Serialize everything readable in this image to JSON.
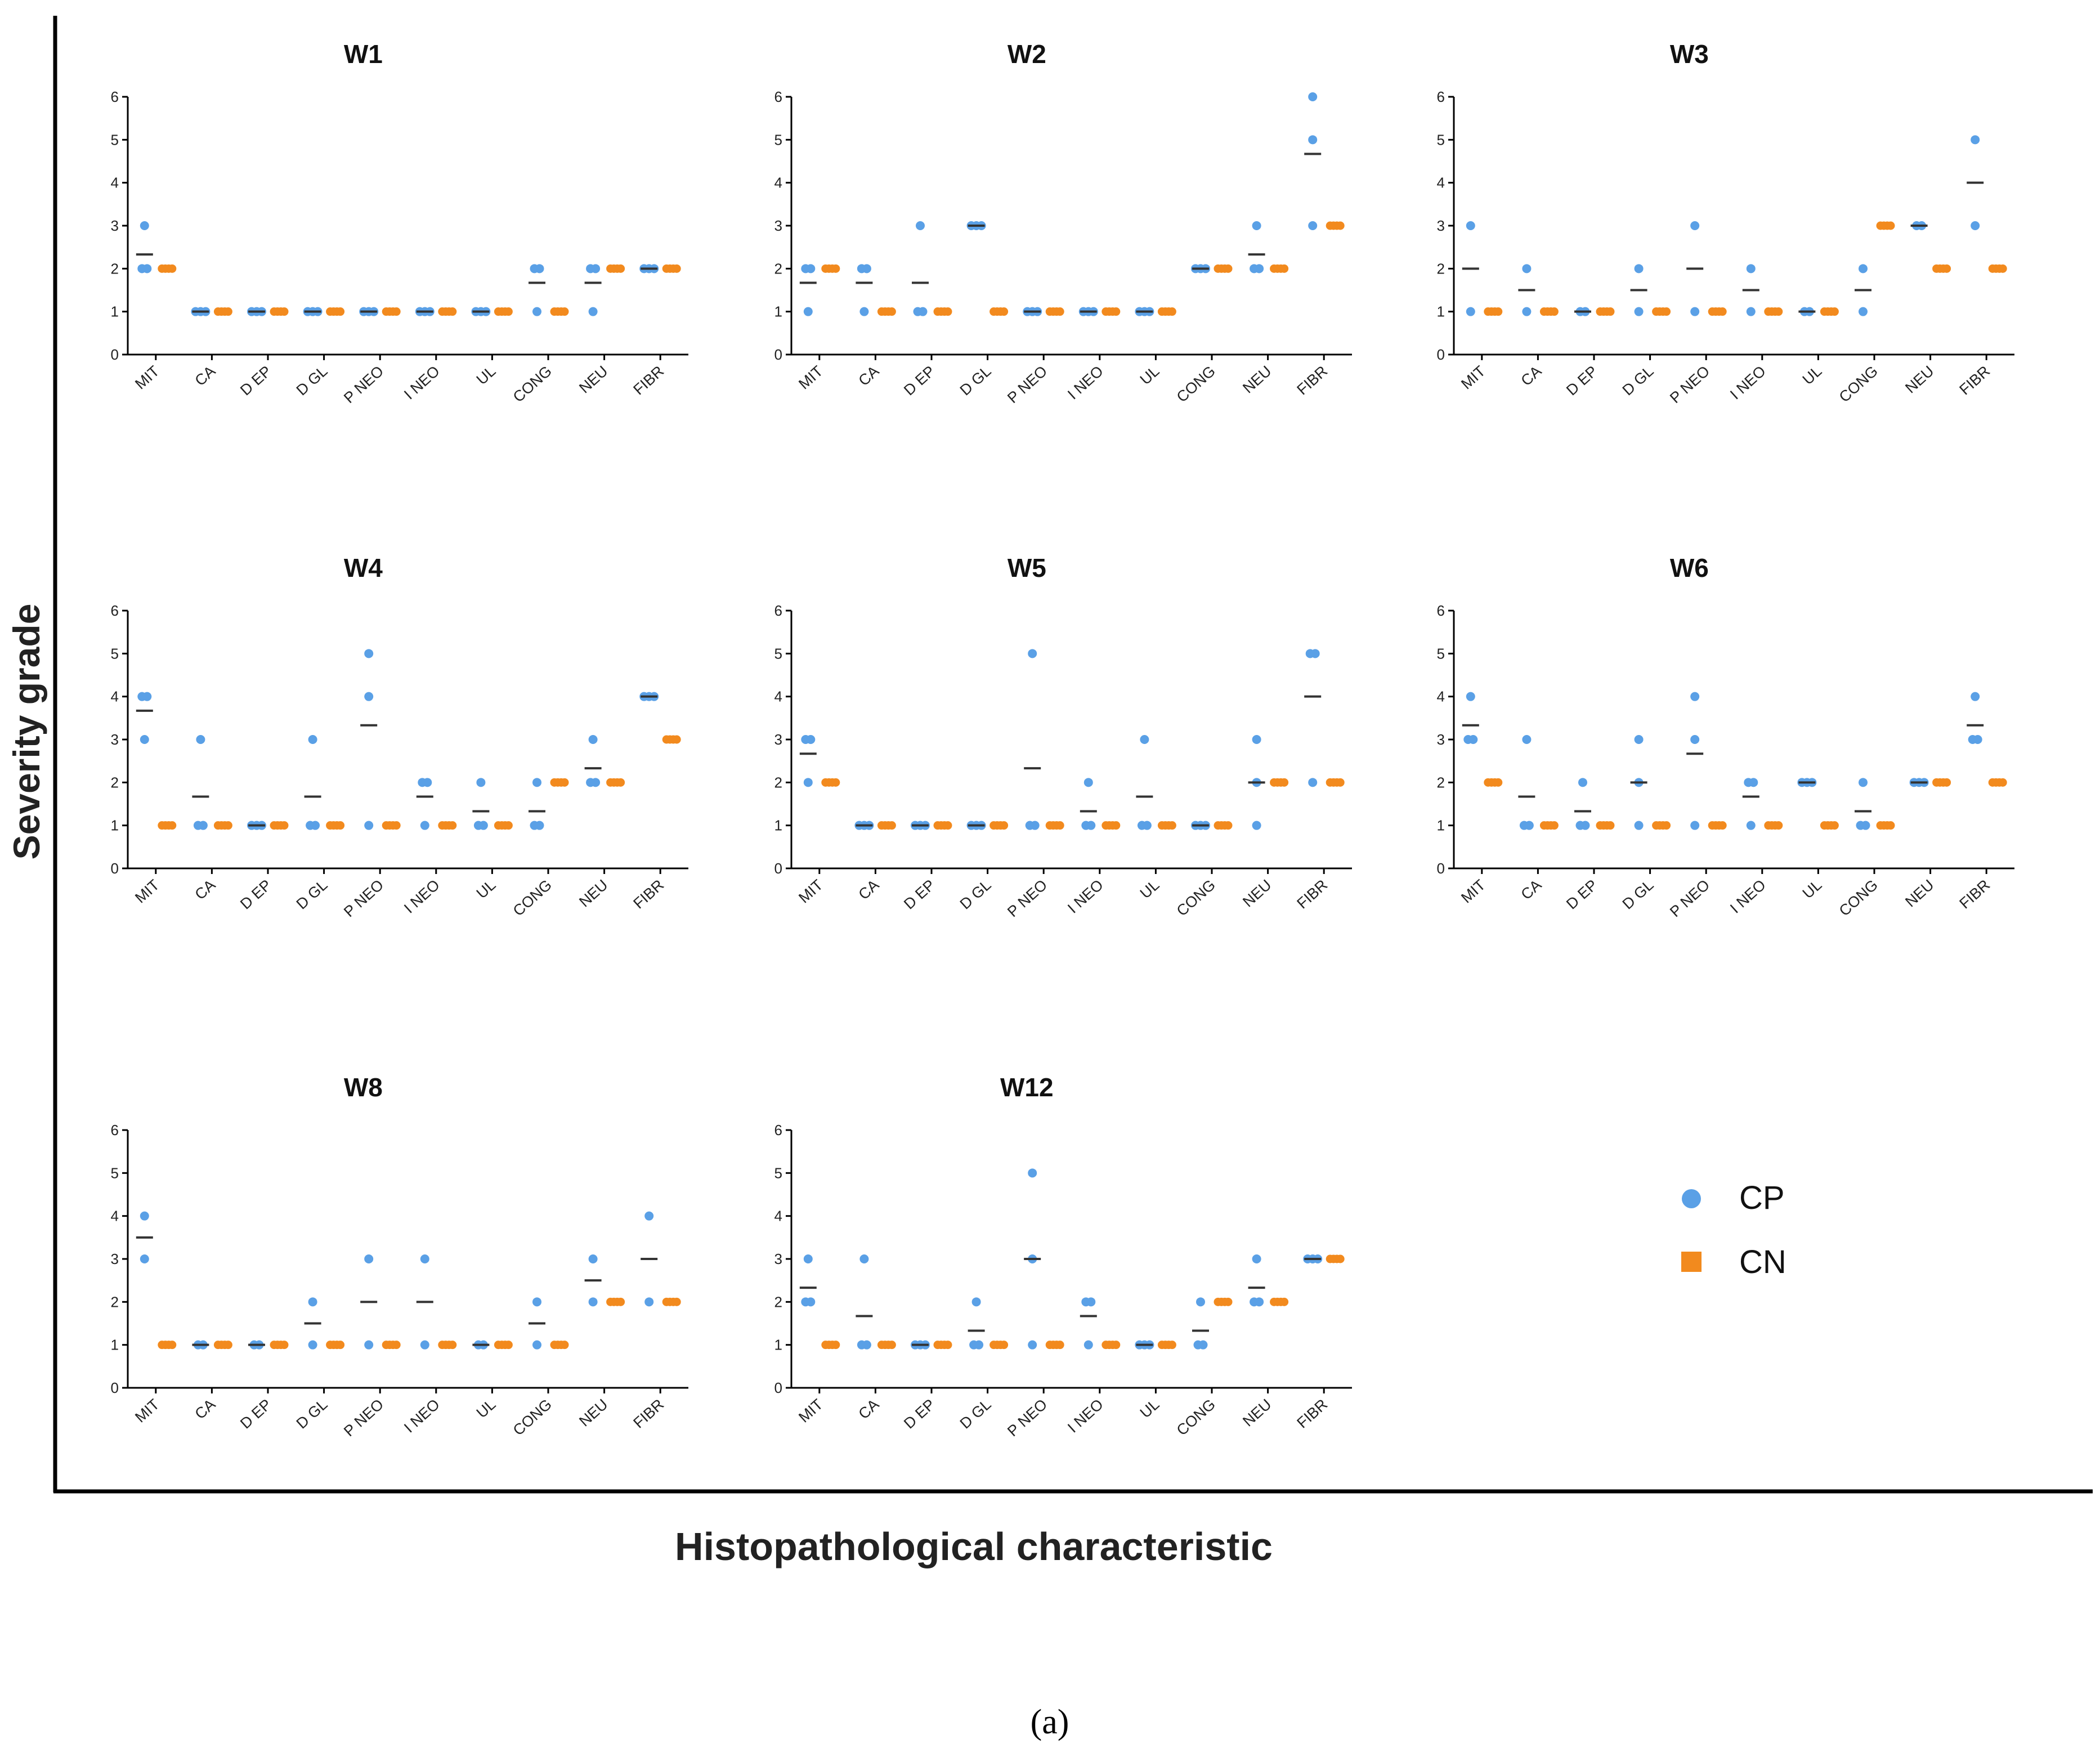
{
  "figure": {
    "y_axis_label": "Severity grade",
    "x_axis_label": "Histopathological characteristic",
    "caption": "(a)"
  },
  "legend": {
    "entries": [
      {
        "name": "CP",
        "color": "#5aa0e6",
        "marker": "circle"
      },
      {
        "name": "CN",
        "color": "#f28a1e",
        "marker": "square"
      }
    ]
  },
  "colors": {
    "cp": "#5aa0e6",
    "cn": "#f28a1e",
    "mean": "#333333",
    "axis": "#000000"
  },
  "chart_data": {
    "type": "scatter",
    "variant": "grouped dot plot with mean lines",
    "categories": [
      "MIT",
      "CA",
      "D EP",
      "D GL",
      "P NEO",
      "I NEO",
      "UL",
      "CONG",
      "NEU",
      "FIBR"
    ],
    "series_names": [
      "CP",
      "CN"
    ],
    "ylim": [
      0,
      6
    ],
    "yticks": [
      "0",
      "1",
      "2",
      "3",
      "4",
      "5",
      "6"
    ],
    "panels": [
      {
        "title": "W1",
        "cp": [
          [
            3,
            2,
            2
          ],
          [
            1,
            1,
            1
          ],
          [
            1,
            1,
            1
          ],
          [
            1,
            1,
            1
          ],
          [
            1,
            1,
            1
          ],
          [
            1,
            1,
            1
          ],
          [
            1,
            1,
            1
          ],
          [
            2,
            2,
            1
          ],
          [
            2,
            2,
            1
          ],
          [
            2,
            2,
            2
          ]
        ],
        "cp_mean": [
          2.33,
          1,
          1,
          1,
          1,
          1,
          1,
          1.67,
          1.67,
          2
        ],
        "cn": [
          2,
          1,
          1,
          1,
          1,
          1,
          1,
          1,
          2,
          2
        ]
      },
      {
        "title": "W2",
        "cp": [
          [
            2,
            2,
            1
          ],
          [
            2,
            2,
            1
          ],
          [
            3,
            1,
            1
          ],
          [
            3,
            3,
            3
          ],
          [
            1,
            1,
            1
          ],
          [
            1,
            1,
            1
          ],
          [
            1,
            1,
            1
          ],
          [
            2,
            2,
            2
          ],
          [
            3,
            2,
            2
          ],
          [
            6,
            5,
            3
          ]
        ],
        "cp_mean": [
          1.67,
          1.67,
          1.67,
          3,
          1,
          1,
          1,
          2,
          2.33,
          4.67
        ],
        "cn": [
          2,
          1,
          1,
          1,
          1,
          1,
          1,
          2,
          2,
          3
        ]
      },
      {
        "title": "W3",
        "cp": [
          [
            3,
            1
          ],
          [
            2,
            1
          ],
          [
            1,
            1
          ],
          [
            2,
            1
          ],
          [
            3,
            1
          ],
          [
            2,
            1
          ],
          [
            1,
            1
          ],
          [
            2,
            1
          ],
          [
            3,
            3
          ],
          [
            5,
            3
          ]
        ],
        "cp_mean": [
          2,
          1.5,
          1,
          1.5,
          2,
          1.5,
          1,
          1.5,
          3,
          4
        ],
        "cn": [
          1,
          1,
          1,
          1,
          1,
          1,
          1,
          3,
          2,
          2
        ]
      },
      {
        "title": "W4",
        "cp": [
          [
            4,
            4,
            3
          ],
          [
            3,
            1,
            1
          ],
          [
            1,
            1,
            1
          ],
          [
            3,
            1,
            1
          ],
          [
            5,
            4,
            1
          ],
          [
            2,
            2,
            1
          ],
          [
            2,
            1,
            1
          ],
          [
            2,
            1,
            1
          ],
          [
            3,
            2,
            2
          ],
          [
            4,
            4,
            4
          ]
        ],
        "cp_mean": [
          3.67,
          1.67,
          1,
          1.67,
          3.33,
          1.67,
          1.33,
          1.33,
          2.33,
          4
        ],
        "cn": [
          1,
          1,
          1,
          1,
          1,
          1,
          1,
          2,
          2,
          3
        ]
      },
      {
        "title": "W5",
        "cp": [
          [
            3,
            3,
            2
          ],
          [
            1,
            1,
            1
          ],
          [
            1,
            1,
            1
          ],
          [
            1,
            1,
            1
          ],
          [
            5,
            1,
            1
          ],
          [
            2,
            1,
            1
          ],
          [
            3,
            1,
            1
          ],
          [
            1,
            1,
            1
          ],
          [
            3,
            2,
            1
          ],
          [
            5,
            5,
            2
          ]
        ],
        "cp_mean": [
          2.67,
          1,
          1,
          1,
          2.33,
          1.33,
          1.67,
          1,
          2,
          4
        ],
        "cn": [
          2,
          1,
          1,
          1,
          1,
          1,
          1,
          1,
          2,
          2
        ]
      },
      {
        "title": "W6",
        "cp": [
          [
            4,
            3,
            3
          ],
          [
            3,
            1,
            1
          ],
          [
            2,
            1,
            1
          ],
          [
            3,
            2,
            1
          ],
          [
            4,
            3,
            1
          ],
          [
            2,
            2,
            1
          ],
          [
            2,
            2,
            2
          ],
          [
            2,
            1,
            1
          ],
          [
            2,
            2,
            2
          ],
          [
            4,
            3,
            3
          ]
        ],
        "cp_mean": [
          3.33,
          1.67,
          1.33,
          2,
          2.67,
          1.67,
          2,
          1.33,
          2,
          3.33
        ],
        "cn": [
          2,
          1,
          1,
          1,
          1,
          1,
          1,
          1,
          2,
          2
        ]
      },
      {
        "title": "W8",
        "cp": [
          [
            4,
            3
          ],
          [
            1,
            1
          ],
          [
            1,
            1
          ],
          [
            2,
            1
          ],
          [
            3,
            1
          ],
          [
            3,
            1
          ],
          [
            1,
            1
          ],
          [
            2,
            1
          ],
          [
            3,
            2
          ],
          [
            4,
            2
          ]
        ],
        "cp_mean": [
          3.5,
          1,
          1,
          1.5,
          2,
          2,
          1,
          1.5,
          2.5,
          3
        ],
        "cn": [
          1,
          1,
          1,
          1,
          1,
          1,
          1,
          1,
          2,
          2
        ]
      },
      {
        "title": "W12",
        "cp": [
          [
            3,
            2,
            2
          ],
          [
            3,
            1,
            1
          ],
          [
            1,
            1,
            1
          ],
          [
            2,
            1,
            1
          ],
          [
            5,
            3,
            1
          ],
          [
            2,
            2,
            1
          ],
          [
            1,
            1,
            1
          ],
          [
            2,
            1,
            1
          ],
          [
            3,
            2,
            2
          ],
          [
            3,
            3,
            3
          ]
        ],
        "cp_mean": [
          2.33,
          1.67,
          1,
          1.33,
          3,
          1.67,
          1,
          1.33,
          2.33,
          3
        ],
        "cn": [
          1,
          1,
          1,
          1,
          1,
          1,
          1,
          2,
          2,
          3
        ]
      }
    ]
  }
}
